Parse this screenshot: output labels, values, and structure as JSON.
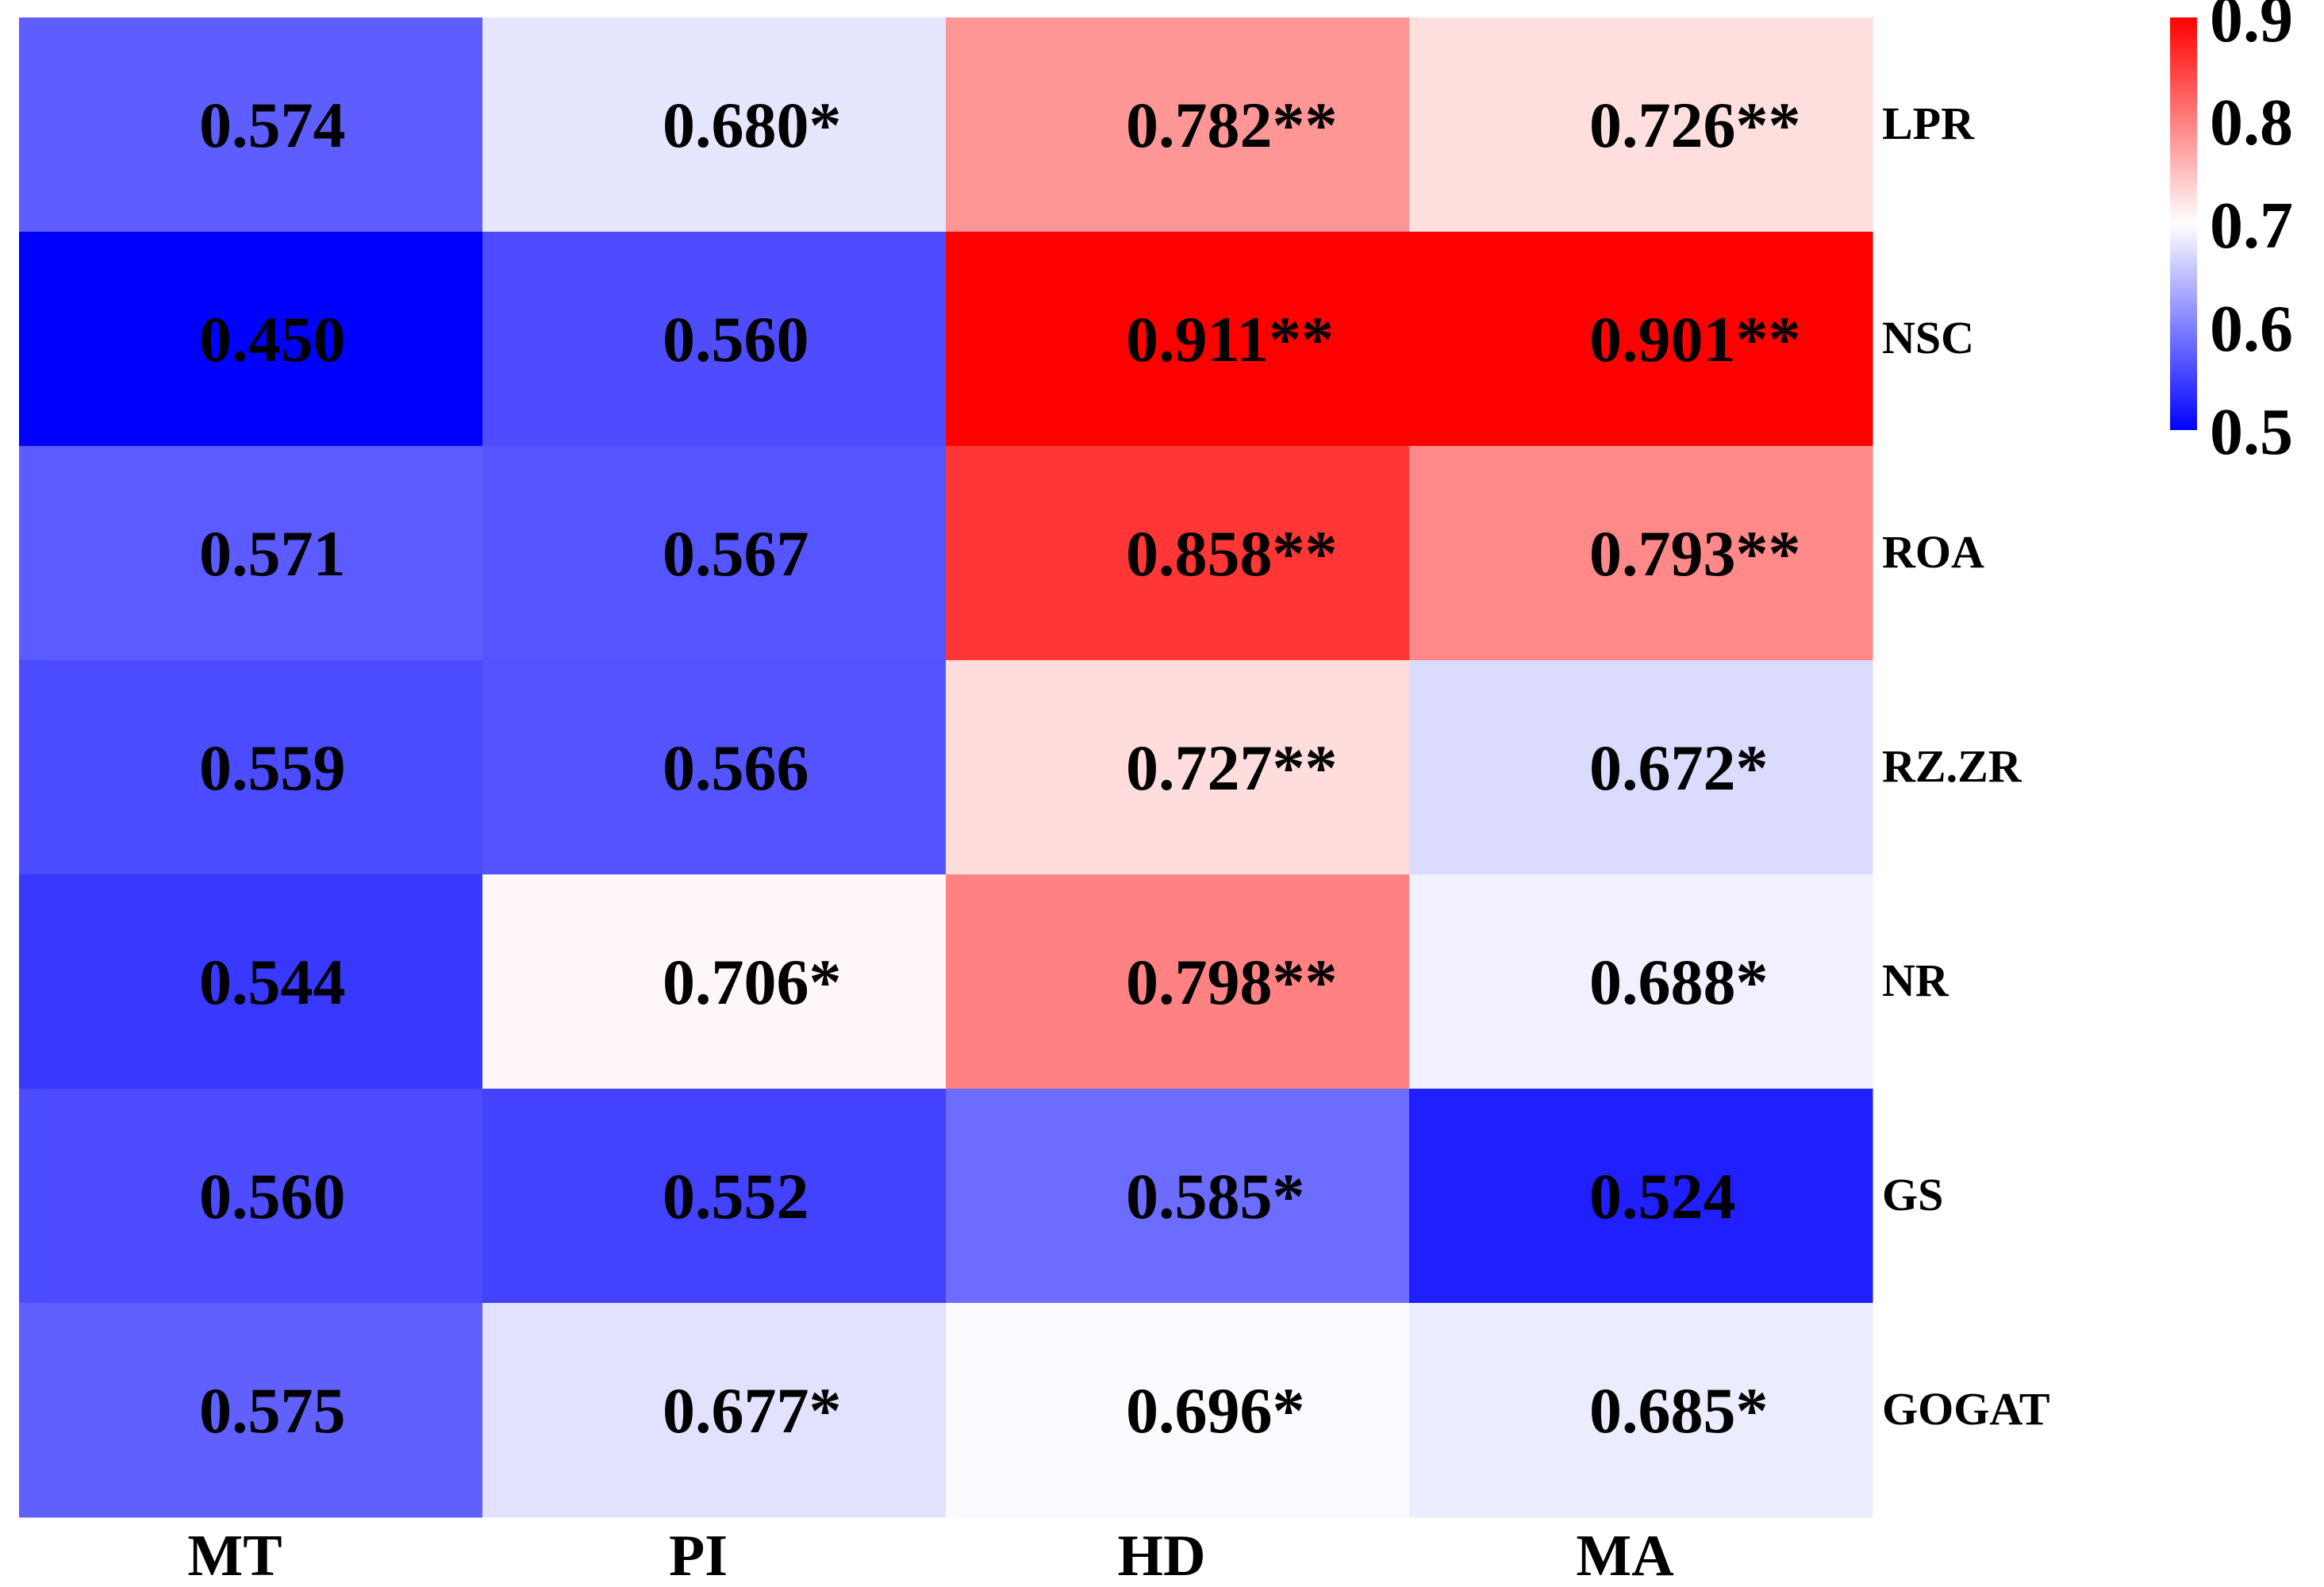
{
  "chart_data": {
    "type": "heatmap",
    "title": "",
    "columns": [
      "MT",
      "PI",
      "HD",
      "MA"
    ],
    "rows": [
      "LPR",
      "NSC",
      "ROA",
      "RZ.ZR",
      "NR",
      "GS",
      "GOGAT"
    ],
    "values": [
      [
        0.574,
        0.68,
        0.782,
        0.726
      ],
      [
        0.45,
        0.56,
        0.911,
        0.901
      ],
      [
        0.571,
        0.567,
        0.858,
        0.793
      ],
      [
        0.559,
        0.566,
        0.727,
        0.672
      ],
      [
        0.544,
        0.706,
        0.798,
        0.688
      ],
      [
        0.56,
        0.552,
        0.585,
        0.524
      ],
      [
        0.575,
        0.677,
        0.696,
        0.685
      ]
    ],
    "cell_labels": [
      [
        "0.574",
        "0.680*",
        "0.782**",
        "0.726**"
      ],
      [
        "0.450",
        "0.560",
        "0.911**",
        "0.901**"
      ],
      [
        "0.571",
        "0.567",
        "0.858**",
        "0.793**"
      ],
      [
        "0.559",
        "0.566",
        "0.727**",
        "0.672*"
      ],
      [
        "0.544",
        "0.706*",
        "0.798**",
        "0.688*"
      ],
      [
        "0.560",
        "0.552",
        "0.585*",
        "0.524"
      ],
      [
        "0.575",
        "0.677*",
        "0.696*",
        "0.685*"
      ]
    ],
    "colorbar": {
      "ticks": [
        0.9,
        0.8,
        0.7,
        0.6,
        0.5
      ],
      "range": [
        0.5,
        0.9
      ],
      "low_color": "#0000ff",
      "mid_color": "#ffffff",
      "high_color": "#ff0000",
      "mid_value": 0.7
    }
  }
}
